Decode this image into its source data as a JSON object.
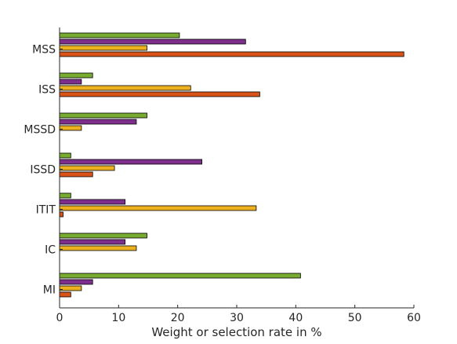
{
  "chart_data": {
    "type": "bar",
    "orientation": "horizontal",
    "categories": [
      "MSS",
      "ISS",
      "MSSD",
      "ISSD",
      "ITIT",
      "IC",
      "MI"
    ],
    "series": [
      {
        "color": "#77AC30",
        "values": [
          20.3,
          5.6,
          14.8,
          1.9,
          1.9,
          14.8,
          40.8
        ]
      },
      {
        "color": "#7E2F8E",
        "values": [
          31.5,
          3.7,
          13.0,
          24.1,
          11.1,
          11.1,
          5.6
        ]
      },
      {
        "color": "#EDB120",
        "values": [
          14.8,
          22.2,
          3.7,
          9.3,
          33.3,
          13.0,
          3.7
        ]
      },
      {
        "color": "#D95319",
        "values": [
          58.3,
          33.9,
          null,
          5.6,
          0.6,
          null,
          1.9
        ]
      }
    ],
    "xlabel": "Weight or selection rate in %",
    "ylabel": "",
    "xlim": [
      0,
      60
    ],
    "xticks": [
      "0",
      "10",
      "20",
      "30",
      "40",
      "50",
      "60"
    ],
    "grid": false,
    "legend": false
  }
}
